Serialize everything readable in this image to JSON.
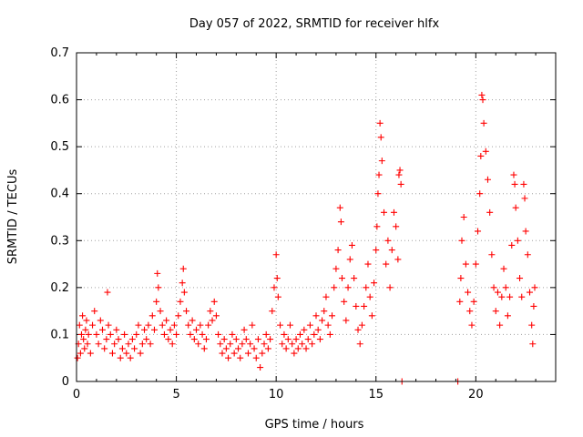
{
  "chart_data": {
    "type": "scatter",
    "title": "Day 057 of 2022, SRMTID for receiver hlfx",
    "xlabel": "GPS time / hours",
    "ylabel": "SRMTID / TECUs",
    "xlim": [
      0,
      24
    ],
    "ylim": [
      0,
      0.7
    ],
    "xticks": [
      0,
      5,
      10,
      15,
      20
    ],
    "yticks": [
      0,
      0.1,
      0.2,
      0.3,
      0.4,
      0.5,
      0.6,
      0.7
    ],
    "xtick_labels": [
      "0",
      "5",
      "10",
      "15",
      "20"
    ],
    "ytick_labels": [
      "0",
      "0.1",
      "0.2",
      "0.3",
      "0.4",
      "0.5",
      "0.6",
      "0.7"
    ],
    "grid": true,
    "marker": "+",
    "color": "#ff0000",
    "series": [
      {
        "name": "SRMTID",
        "points": [
          [
            0.05,
            0.05
          ],
          [
            0.1,
            0.08
          ],
          [
            0.15,
            0.12
          ],
          [
            0.2,
            0.06
          ],
          [
            0.25,
            0.1
          ],
          [
            0.3,
            0.14
          ],
          [
            0.35,
            0.09
          ],
          [
            0.4,
            0.07
          ],
          [
            0.45,
            0.11
          ],
          [
            0.5,
            0.13
          ],
          [
            0.55,
            0.08
          ],
          [
            0.6,
            0.1
          ],
          [
            0.7,
            0.06
          ],
          [
            0.8,
            0.12
          ],
          [
            0.9,
            0.15
          ],
          [
            1.0,
            0.1
          ],
          [
            1.1,
            0.08
          ],
          [
            1.2,
            0.13
          ],
          [
            1.3,
            0.11
          ],
          [
            1.4,
            0.07
          ],
          [
            1.5,
            0.09
          ],
          [
            1.55,
            0.19
          ],
          [
            1.6,
            0.12
          ],
          [
            1.7,
            0.1
          ],
          [
            1.8,
            0.06
          ],
          [
            1.9,
            0.08
          ],
          [
            2.0,
            0.11
          ],
          [
            2.1,
            0.09
          ],
          [
            2.2,
            0.05
          ],
          [
            2.3,
            0.07
          ],
          [
            2.4,
            0.1
          ],
          [
            2.5,
            0.06
          ],
          [
            2.6,
            0.08
          ],
          [
            2.7,
            0.05
          ],
          [
            2.8,
            0.09
          ],
          [
            2.9,
            0.07
          ],
          [
            3.0,
            0.1
          ],
          [
            3.1,
            0.12
          ],
          [
            3.2,
            0.06
          ],
          [
            3.3,
            0.08
          ],
          [
            3.4,
            0.11
          ],
          [
            3.5,
            0.09
          ],
          [
            3.6,
            0.12
          ],
          [
            3.7,
            0.08
          ],
          [
            3.8,
            0.14
          ],
          [
            3.9,
            0.11
          ],
          [
            4.0,
            0.17
          ],
          [
            4.05,
            0.23
          ],
          [
            4.1,
            0.2
          ],
          [
            4.2,
            0.15
          ],
          [
            4.3,
            0.12
          ],
          [
            4.4,
            0.1
          ],
          [
            4.5,
            0.13
          ],
          [
            4.6,
            0.09
          ],
          [
            4.7,
            0.11
          ],
          [
            4.8,
            0.08
          ],
          [
            4.9,
            0.12
          ],
          [
            5.0,
            0.1
          ],
          [
            5.1,
            0.14
          ],
          [
            5.2,
            0.17
          ],
          [
            5.3,
            0.21
          ],
          [
            5.35,
            0.24
          ],
          [
            5.4,
            0.19
          ],
          [
            5.5,
            0.15
          ],
          [
            5.6,
            0.12
          ],
          [
            5.7,
            0.1
          ],
          [
            5.8,
            0.13
          ],
          [
            5.9,
            0.09
          ],
          [
            6.0,
            0.11
          ],
          [
            6.1,
            0.08
          ],
          [
            6.2,
            0.12
          ],
          [
            6.3,
            0.1
          ],
          [
            6.4,
            0.07
          ],
          [
            6.5,
            0.09
          ],
          [
            6.6,
            0.12
          ],
          [
            6.7,
            0.15
          ],
          [
            6.8,
            0.13
          ],
          [
            6.9,
            0.17
          ],
          [
            7.0,
            0.14
          ],
          [
            7.1,
            0.1
          ],
          [
            7.2,
            0.08
          ],
          [
            7.3,
            0.06
          ],
          [
            7.4,
            0.09
          ],
          [
            7.5,
            0.07
          ],
          [
            7.6,
            0.05
          ],
          [
            7.7,
            0.08
          ],
          [
            7.8,
            0.1
          ],
          [
            7.9,
            0.06
          ],
          [
            8.0,
            0.09
          ],
          [
            8.1,
            0.07
          ],
          [
            8.2,
            0.05
          ],
          [
            8.3,
            0.08
          ],
          [
            8.4,
            0.11
          ],
          [
            8.5,
            0.09
          ],
          [
            8.6,
            0.06
          ],
          [
            8.7,
            0.08
          ],
          [
            8.8,
            0.12
          ],
          [
            8.9,
            0.07
          ],
          [
            9.0,
            0.05
          ],
          [
            9.1,
            0.09
          ],
          [
            9.2,
            0.03
          ],
          [
            9.3,
            0.06
          ],
          [
            9.4,
            0.08
          ],
          [
            9.5,
            0.1
          ],
          [
            9.6,
            0.07
          ],
          [
            9.7,
            0.09
          ],
          [
            9.8,
            0.15
          ],
          [
            9.9,
            0.2
          ],
          [
            10.0,
            0.27
          ],
          [
            10.05,
            0.22
          ],
          [
            10.1,
            0.18
          ],
          [
            10.2,
            0.12
          ],
          [
            10.3,
            0.08
          ],
          [
            10.4,
            0.1
          ],
          [
            10.5,
            0.07
          ],
          [
            10.6,
            0.09
          ],
          [
            10.7,
            0.12
          ],
          [
            10.8,
            0.08
          ],
          [
            10.9,
            0.06
          ],
          [
            11.0,
            0.09
          ],
          [
            11.1,
            0.07
          ],
          [
            11.2,
            0.1
          ],
          [
            11.3,
            0.08
          ],
          [
            11.4,
            0.11
          ],
          [
            11.5,
            0.07
          ],
          [
            11.6,
            0.09
          ],
          [
            11.7,
            0.12
          ],
          [
            11.8,
            0.08
          ],
          [
            11.9,
            0.1
          ],
          [
            12.0,
            0.14
          ],
          [
            12.1,
            0.11
          ],
          [
            12.2,
            0.09
          ],
          [
            12.3,
            0.13
          ],
          [
            12.4,
            0.15
          ],
          [
            12.5,
            0.18
          ],
          [
            12.6,
            0.12
          ],
          [
            12.7,
            0.1
          ],
          [
            12.8,
            0.14
          ],
          [
            12.9,
            0.2
          ],
          [
            13.0,
            0.24
          ],
          [
            13.1,
            0.28
          ],
          [
            13.2,
            0.37
          ],
          [
            13.25,
            0.34
          ],
          [
            13.3,
            0.22
          ],
          [
            13.4,
            0.17
          ],
          [
            13.5,
            0.13
          ],
          [
            13.6,
            0.2
          ],
          [
            13.7,
            0.26
          ],
          [
            13.8,
            0.29
          ],
          [
            13.9,
            0.22
          ],
          [
            14.0,
            0.16
          ],
          [
            14.1,
            0.11
          ],
          [
            14.2,
            0.08
          ],
          [
            14.3,
            0.12
          ],
          [
            14.4,
            0.16
          ],
          [
            14.5,
            0.2
          ],
          [
            14.6,
            0.25
          ],
          [
            14.7,
            0.18
          ],
          [
            14.8,
            0.14
          ],
          [
            14.9,
            0.21
          ],
          [
            15.0,
            0.28
          ],
          [
            15.05,
            0.33
          ],
          [
            15.1,
            0.4
          ],
          [
            15.15,
            0.44
          ],
          [
            15.2,
            0.55
          ],
          [
            15.25,
            0.52
          ],
          [
            15.3,
            0.47
          ],
          [
            15.4,
            0.36
          ],
          [
            15.5,
            0.25
          ],
          [
            15.6,
            0.3
          ],
          [
            15.7,
            0.2
          ],
          [
            15.8,
            0.28
          ],
          [
            15.9,
            0.36
          ],
          [
            16.0,
            0.33
          ],
          [
            16.1,
            0.26
          ],
          [
            16.15,
            0.44
          ],
          [
            16.2,
            0.45
          ],
          [
            16.25,
            0.42
          ],
          [
            16.3,
            0.0
          ],
          [
            19.1,
            0.0
          ],
          [
            19.2,
            0.17
          ],
          [
            19.25,
            0.22
          ],
          [
            19.3,
            0.3
          ],
          [
            19.4,
            0.35
          ],
          [
            19.5,
            0.25
          ],
          [
            19.6,
            0.19
          ],
          [
            19.7,
            0.15
          ],
          [
            19.8,
            0.12
          ],
          [
            19.9,
            0.17
          ],
          [
            20.0,
            0.25
          ],
          [
            20.1,
            0.32
          ],
          [
            20.2,
            0.4
          ],
          [
            20.25,
            0.48
          ],
          [
            20.3,
            0.61
          ],
          [
            20.35,
            0.6
          ],
          [
            20.4,
            0.55
          ],
          [
            20.5,
            0.49
          ],
          [
            20.6,
            0.43
          ],
          [
            20.7,
            0.36
          ],
          [
            20.8,
            0.27
          ],
          [
            20.9,
            0.2
          ],
          [
            21.0,
            0.15
          ],
          [
            21.1,
            0.19
          ],
          [
            21.2,
            0.12
          ],
          [
            21.3,
            0.18
          ],
          [
            21.4,
            0.24
          ],
          [
            21.5,
            0.2
          ],
          [
            21.6,
            0.14
          ],
          [
            21.7,
            0.18
          ],
          [
            21.8,
            0.29
          ],
          [
            21.9,
            0.44
          ],
          [
            21.95,
            0.42
          ],
          [
            22.0,
            0.37
          ],
          [
            22.1,
            0.3
          ],
          [
            22.2,
            0.22
          ],
          [
            22.3,
            0.18
          ],
          [
            22.4,
            0.42
          ],
          [
            22.45,
            0.39
          ],
          [
            22.5,
            0.32
          ],
          [
            22.6,
            0.27
          ],
          [
            22.7,
            0.19
          ],
          [
            22.8,
            0.12
          ],
          [
            22.85,
            0.08
          ],
          [
            22.9,
            0.16
          ],
          [
            22.95,
            0.2
          ]
        ]
      }
    ]
  }
}
